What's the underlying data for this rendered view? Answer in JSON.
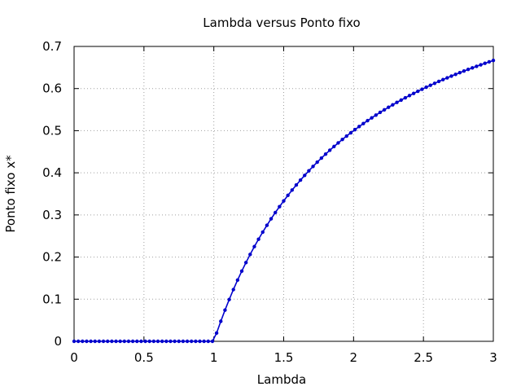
{
  "chart_data": {
    "type": "line",
    "title": "Lambda versus Ponto fixo",
    "xlabel": "Lambda",
    "ylabel": "Ponto fixo x*",
    "xlim": [
      0,
      3
    ],
    "ylim": [
      0,
      0.7
    ],
    "xticks": [
      "0",
      "0.5",
      "1",
      "1.5",
      "2",
      "2.5",
      "3"
    ],
    "yticks": [
      "0",
      "0.1",
      "0.2",
      "0.3",
      "0.4",
      "0.5",
      "0.6",
      "0.7"
    ],
    "grid": true,
    "legend": "none",
    "series": [
      {
        "color": "#0000cc",
        "marker": "point",
        "x": [
          0,
          0.03,
          0.06,
          0.09,
          0.12,
          0.15,
          0.18,
          0.21,
          0.24,
          0.27,
          0.3,
          0.33,
          0.36,
          0.39,
          0.42,
          0.45,
          0.48,
          0.51,
          0.54,
          0.57,
          0.6,
          0.63,
          0.66,
          0.69,
          0.72,
          0.75,
          0.78,
          0.81,
          0.84,
          0.87,
          0.9,
          0.93,
          0.96,
          0.99,
          1.02,
          1.05,
          1.08,
          1.11,
          1.14,
          1.17,
          1.2,
          1.23,
          1.26,
          1.29,
          1.32,
          1.35,
          1.38,
          1.41,
          1.44,
          1.47,
          1.5,
          1.53,
          1.56,
          1.59,
          1.62,
          1.65,
          1.68,
          1.71,
          1.74,
          1.77,
          1.8,
          1.83,
          1.86,
          1.89,
          1.92,
          1.95,
          1.98,
          2.01,
          2.04,
          2.07,
          2.1,
          2.13,
          2.16,
          2.19,
          2.22,
          2.25,
          2.28,
          2.31,
          2.34,
          2.37,
          2.4,
          2.43,
          2.46,
          2.49,
          2.52,
          2.55,
          2.58,
          2.61,
          2.64,
          2.67,
          2.7,
          2.73,
          2.76,
          2.79,
          2.82,
          2.85,
          2.88,
          2.91,
          2.94,
          2.97,
          3.0
        ],
        "y": [
          0,
          0,
          0,
          0,
          0,
          0,
          0,
          0,
          0,
          0,
          0,
          0,
          0,
          0,
          0,
          0,
          0,
          0,
          0,
          0,
          0,
          0,
          0,
          0,
          0,
          0,
          0,
          0,
          0,
          0,
          0,
          0,
          0,
          0,
          0.0196,
          0.0476,
          0.0741,
          0.0991,
          0.1228,
          0.1453,
          0.1667,
          0.187,
          0.2063,
          0.2248,
          0.2424,
          0.2593,
          0.2754,
          0.2908,
          0.3056,
          0.3197,
          0.3333,
          0.3464,
          0.359,
          0.3711,
          0.3827,
          0.3939,
          0.4048,
          0.4152,
          0.4253,
          0.435,
          0.4444,
          0.4536,
          0.4624,
          0.4709,
          0.4792,
          0.4872,
          0.4949,
          0.5025,
          0.5098,
          0.5169,
          0.5238,
          0.5305,
          0.537,
          0.5434,
          0.5495,
          0.5556,
          0.5614,
          0.5671,
          0.5726,
          0.5781,
          0.5833,
          0.5885,
          0.5935,
          0.5984,
          0.6032,
          0.6078,
          0.6124,
          0.6169,
          0.6212,
          0.6255,
          0.6296,
          0.6337,
          0.6377,
          0.6416,
          0.6454,
          0.6491,
          0.6528,
          0.6564,
          0.6599,
          0.6633,
          0.6667
        ]
      }
    ]
  }
}
